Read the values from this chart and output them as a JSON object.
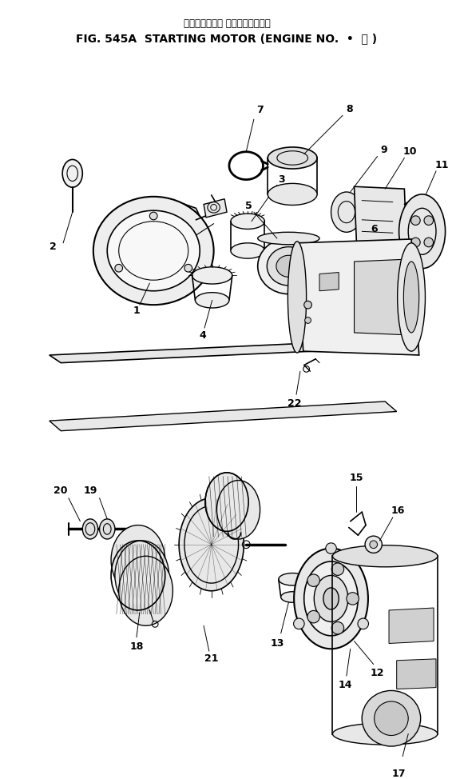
{
  "title_jp": "スターティング モータ　適用号機",
  "title_en": "FIG. 545A  STARTING MOTOR (ENGINE NO.  •  － )",
  "bg": "#ffffff",
  "lc": "#000000",
  "fig_w": 5.71,
  "fig_h": 9.74
}
